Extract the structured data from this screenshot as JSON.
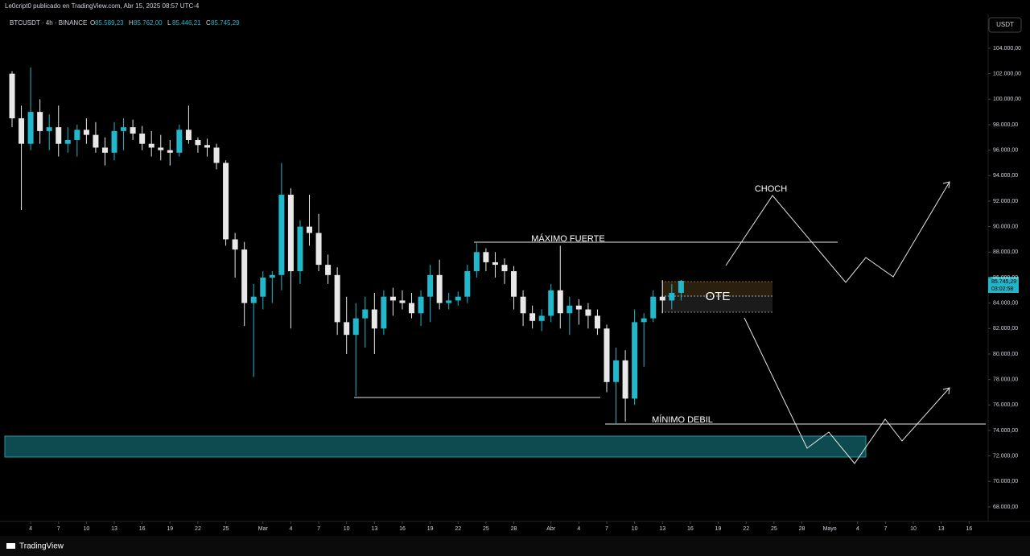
{
  "chart_data": {
    "type": "candlestick",
    "publisher": "Le0cript0 publicado en TradingView.com, Abr 15, 2025 08:57 UTC-4",
    "title": "BTCUSDT · 4h · BINANCE",
    "ohlc_header": [
      {
        "key": "O",
        "value": "85.589,23"
      },
      {
        "key": "H",
        "value": "85.762,00"
      },
      {
        "key": "L",
        "value": "85.446,21"
      },
      {
        "key": "C",
        "value": "85.745,29"
      }
    ],
    "currency": "USDT",
    "last_price_label": "85.745,29",
    "countdown": "03:02:58",
    "annotations": {
      "max": "MÁXIMO FUERTE",
      "choch": "CHOCH",
      "ote": "OTE",
      "min": "MÍNIMO DEBIL"
    },
    "footer": "TradingView",
    "up_color": "#22b8cc",
    "down_color": "#e8e8e8",
    "x": [
      2,
      3,
      4,
      5,
      6,
      7,
      8,
      9,
      10,
      11,
      12,
      13,
      14,
      15,
      16,
      17,
      18,
      19,
      20,
      21,
      22,
      23,
      24,
      25,
      26,
      27,
      28,
      29,
      30,
      31,
      32,
      33,
      34,
      35,
      36,
      37,
      38,
      39,
      40,
      41,
      42,
      43,
      44,
      45,
      46,
      47,
      48,
      49,
      50,
      51,
      52,
      53,
      54,
      55,
      56,
      57,
      58,
      59,
      60,
      61,
      62,
      63,
      64,
      65,
      66,
      67,
      68,
      69,
      70,
      71,
      72,
      73,
      74
    ],
    "open": [
      102000,
      98500,
      96500,
      99000,
      97500,
      97800,
      96500,
      96800,
      97600,
      97200,
      96200,
      95800,
      97500,
      97800,
      97300,
      96500,
      96200,
      96000,
      95800,
      97600,
      96800,
      96400,
      96200,
      95000,
      89000,
      88200,
      84000,
      84500,
      86000,
      86200,
      92500,
      86500,
      90000,
      89500,
      87000,
      86200,
      82500,
      81500,
      82800,
      83500,
      82000,
      84500,
      84200,
      84000,
      83200,
      84500,
      86200,
      84000,
      84200,
      84500,
      86500,
      88000,
      87200,
      87000,
      86500,
      84500,
      83200,
      82600,
      83000,
      85000,
      83200,
      83800,
      83500,
      83000,
      82000,
      77800,
      79500,
      76500,
      82500,
      82800,
      84500,
      84200,
      84800
    ],
    "high": [
      102200,
      99500,
      102500,
      100000,
      98800,
      99500,
      97800,
      98000,
      98500,
      98200,
      97000,
      98200,
      98500,
      98400,
      97900,
      97500,
      97200,
      96800,
      98000,
      99500,
      97000,
      96900,
      96500,
      95200,
      89500,
      88800,
      85500,
      86500,
      86500,
      95000,
      93000,
      90500,
      92500,
      91000,
      87800,
      86800,
      84500,
      84000,
      84500,
      84800,
      85000,
      85200,
      85000,
      84800,
      85000,
      87000,
      87400,
      84800,
      84900,
      87000,
      88700,
      88300,
      88000,
      87500,
      86900,
      85000,
      83800,
      83500,
      85500,
      88500,
      84500,
      84300,
      84000,
      83500,
      82300,
      80500,
      80300,
      83500,
      83200,
      85000,
      85800,
      85500,
      85800
    ],
    "low": [
      97800,
      91300,
      96000,
      96500,
      96000,
      95500,
      95800,
      95500,
      96500,
      95800,
      94800,
      95200,
      96000,
      96800,
      96000,
      95500,
      95200,
      94800,
      95500,
      96500,
      95800,
      95500,
      94500,
      88500,
      86000,
      82200,
      78200,
      83500,
      84000,
      85000,
      82000,
      85500,
      88500,
      86500,
      85500,
      81500,
      80000,
      76700,
      80500,
      80000,
      81500,
      83000,
      83500,
      82800,
      82200,
      82500,
      83500,
      83500,
      83800,
      84000,
      86000,
      86500,
      86000,
      85500,
      83500,
      82200,
      82000,
      81800,
      82500,
      82000,
      81500,
      82300,
      82000,
      81500,
      77000,
      74500,
      74700,
      76000,
      79000,
      82500,
      83200,
      83500,
      84200
    ],
    "close": [
      98500,
      96500,
      99000,
      97500,
      97800,
      96500,
      96800,
      97600,
      97200,
      96200,
      95800,
      97500,
      97800,
      97300,
      96500,
      96200,
      96000,
      95800,
      97600,
      96800,
      96400,
      96200,
      95000,
      89000,
      88200,
      84000,
      84500,
      86000,
      86200,
      92500,
      86500,
      90000,
      89500,
      87000,
      86200,
      82500,
      81500,
      82800,
      83500,
      82000,
      84500,
      84200,
      84000,
      83200,
      84500,
      86200,
      84000,
      84200,
      84500,
      86500,
      88000,
      87200,
      87000,
      86500,
      84500,
      83200,
      82600,
      83000,
      85000,
      83200,
      83800,
      83500,
      83000,
      82000,
      77800,
      79500,
      76500,
      82500,
      82800,
      84500,
      84200,
      84800,
      85745.29
    ],
    "xlim": [
      0.7,
      107.05
    ],
    "xticks": [
      4,
      7,
      10,
      13,
      16,
      19,
      22,
      25,
      {
        "value": 29,
        "label": "Mar"
      },
      {
        "value": 32,
        "label": "4"
      },
      {
        "value": 35,
        "label": "7"
      },
      {
        "value": 38,
        "label": "10"
      },
      {
        "value": 41,
        "label": "13"
      },
      {
        "value": 44,
        "label": "16"
      },
      {
        "value": 47,
        "label": "19"
      },
      {
        "value": 50,
        "label": "22"
      },
      {
        "value": 53,
        "label": "25"
      },
      {
        "value": 56,
        "label": "28"
      },
      {
        "value": 60,
        "label": "Abr"
      },
      {
        "value": 63,
        "label": "4"
      },
      {
        "value": 66,
        "label": "7"
      },
      {
        "value": 69,
        "label": "10"
      },
      {
        "value": 72,
        "label": "13"
      },
      {
        "value": 75,
        "label": "16"
      },
      {
        "value": 78,
        "label": "19"
      },
      {
        "value": 81,
        "label": "22"
      },
      {
        "value": 84,
        "label": "25"
      },
      {
        "value": 87,
        "label": "28"
      },
      {
        "value": 90,
        "label": "Mayo"
      },
      {
        "value": 93,
        "label": "4"
      },
      {
        "value": 96,
        "label": "7"
      },
      {
        "value": 99,
        "label": "10"
      },
      {
        "value": 102,
        "label": "13"
      },
      {
        "value": 105,
        "label": "16"
      }
    ],
    "ylim": [
      66860,
      106650
    ],
    "yticks": [
      {
        "value": 104000,
        "label": "104.000,00"
      },
      {
        "value": 102000,
        "label": "102.000,00"
      },
      {
        "value": 100000,
        "label": "100.000,00"
      },
      {
        "value": 98000,
        "label": "98.000,00"
      },
      {
        "value": 96000,
        "label": "96.000,00"
      },
      {
        "value": 94000,
        "label": "94.000,00"
      },
      {
        "value": 92000,
        "label": "92.000,00"
      },
      {
        "value": 90000,
        "label": "90.000,00"
      },
      {
        "value": 88000,
        "label": "88.000,00"
      },
      {
        "value": 86000,
        "label": "86.000,00"
      },
      {
        "value": 84000,
        "label": "84.000,00"
      },
      {
        "value": 82000,
        "label": "82.000,00"
      },
      {
        "value": 80000,
        "label": "80.000,00"
      },
      {
        "value": 78000,
        "label": "78.000,00"
      },
      {
        "value": 76000,
        "label": "76.000,00"
      },
      {
        "value": 74000,
        "label": "74.000,00"
      },
      {
        "value": 72000,
        "label": "72.000,00"
      },
      {
        "value": 70000,
        "label": "70.000,00"
      },
      {
        "value": 68000,
        "label": "68.000,00"
      }
    ]
  }
}
